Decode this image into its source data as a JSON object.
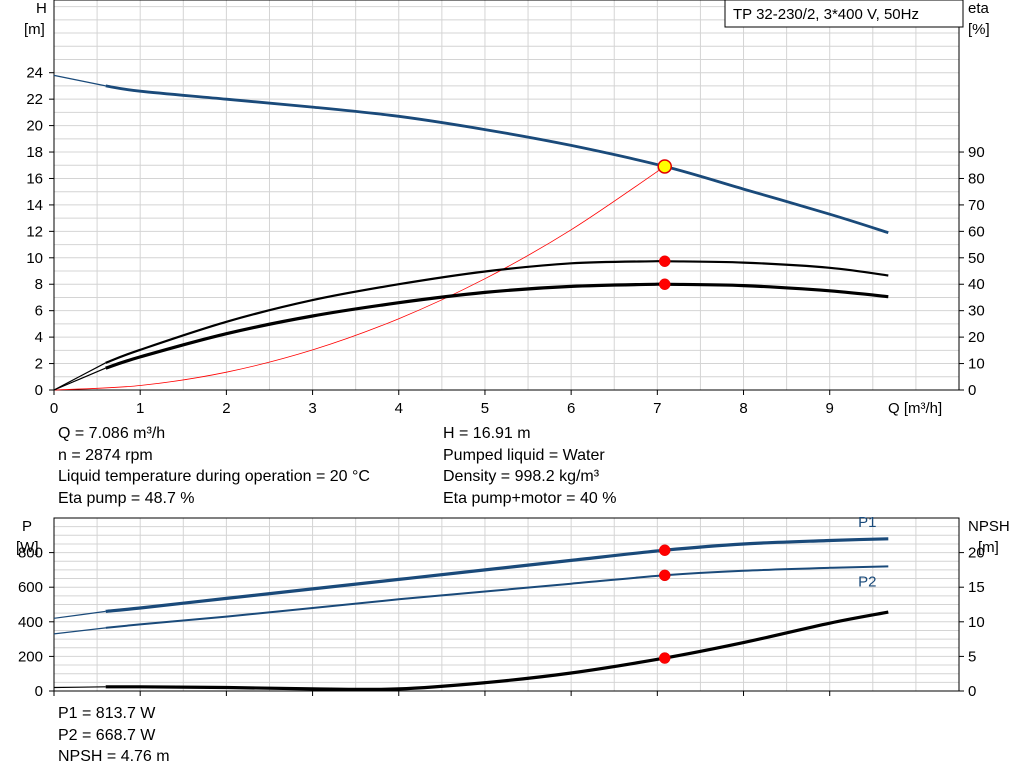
{
  "header": {
    "title": "TP 32-230/2, 3*400 V, 50Hz"
  },
  "chart_data": [
    {
      "type": "line",
      "name": "pump-curves",
      "x_axis": {
        "label": "Q [m³/h]",
        "ticks": [
          "0",
          "1",
          "2",
          "3",
          "4",
          "5",
          "6",
          "7",
          "8",
          "9"
        ],
        "range": [
          0,
          10.5
        ]
      },
      "y_left": {
        "label_line1": "H",
        "label_line2": "[m]",
        "ticks": [
          "0",
          "2",
          "4",
          "6",
          "8",
          "10",
          "12",
          "14",
          "16",
          "18",
          "20",
          "22",
          "24"
        ],
        "range": [
          0,
          29.5
        ]
      },
      "y_right": {
        "label_line1": "eta",
        "label_line2": "[%]",
        "ticks": [
          "0",
          "10",
          "20",
          "30",
          "40",
          "50",
          "60",
          "70",
          "80",
          "90"
        ],
        "range": [
          0,
          147.5
        ]
      },
      "grid": true,
      "series": [
        {
          "axis": "left",
          "color": "#1a4a7a",
          "x": [
            0,
            0.6,
            1,
            2,
            3,
            4,
            5,
            6,
            7.086,
            8,
            9,
            9.68
          ],
          "y": [
            23.8,
            23.0,
            22.6,
            22.0,
            21.4,
            20.7,
            19.7,
            18.5,
            16.91,
            15.2,
            13.3,
            11.9
          ]
        },
        {
          "axis": "left",
          "color": "#ff0000",
          "x": [
            0,
            1,
            2,
            3,
            4,
            5,
            6,
            7.086
          ],
          "y": [
            0,
            0.34,
            1.35,
            3.03,
            5.39,
            8.42,
            12.12,
            16.91
          ]
        },
        {
          "axis": "right",
          "color": "#000000",
          "x": [
            0,
            0.6,
            1,
            2,
            3,
            4,
            5,
            6,
            7,
            7.086,
            8,
            9,
            9.68
          ],
          "y": [
            0,
            10.3,
            15.2,
            25.8,
            34.0,
            40.0,
            44.8,
            47.9,
            48.7,
            48.7,
            48.2,
            46.2,
            43.3
          ]
        },
        {
          "axis": "right",
          "color": "#000000",
          "x": [
            0,
            0.6,
            1,
            2,
            3,
            4,
            5,
            6,
            7,
            7.086,
            8,
            9,
            9.68
          ],
          "y": [
            0,
            8.3,
            12.5,
            21.3,
            28.0,
            33.0,
            36.9,
            39.2,
            40.0,
            40.0,
            39.5,
            37.5,
            35.3
          ]
        }
      ],
      "operating_points": [
        {
          "axis": "left",
          "x": 7.086,
          "y": 16.91,
          "color": "#ffff00"
        },
        {
          "axis": "right",
          "x": 7.086,
          "y": 48.7,
          "color": "#ff0000"
        },
        {
          "axis": "right",
          "x": 7.086,
          "y": 40.0,
          "color": "#ff0000"
        }
      ]
    },
    {
      "type": "line",
      "name": "power-npsh-curves",
      "x_axis": {
        "range": [
          0,
          10.5
        ]
      },
      "y_left": {
        "label_line1": "P",
        "label_line2": "[W]",
        "ticks": [
          "0",
          "200",
          "400",
          "600",
          "800"
        ],
        "range": [
          0,
          1000
        ]
      },
      "y_right": {
        "label_line1": "NPSH",
        "label_line2": "[m]",
        "ticks": [
          "0",
          "5",
          "10",
          "15",
          "20"
        ],
        "range": [
          0,
          25
        ]
      },
      "grid": true,
      "series": [
        {
          "name": "P1",
          "axis": "left",
          "color": "#1a4a7a",
          "x": [
            0,
            0.6,
            1,
            2,
            3,
            4,
            5,
            6,
            7.086,
            8,
            9,
            9.68
          ],
          "y": [
            420,
            460,
            480,
            535,
            590,
            645,
            700,
            755,
            813.7,
            850,
            870,
            880
          ]
        },
        {
          "name": "P2",
          "axis": "left",
          "color": "#1a4a7a",
          "x": [
            0,
            0.6,
            1,
            2,
            3,
            4,
            5,
            6,
            7.086,
            8,
            9,
            9.68
          ],
          "y": [
            330,
            365,
            385,
            430,
            480,
            530,
            575,
            620,
            668.7,
            695,
            712,
            720
          ]
        },
        {
          "axis": "right",
          "color": "#000000",
          "x": [
            0,
            0.6,
            1,
            2,
            3,
            4,
            5,
            6,
            7.086,
            8,
            9,
            9.68
          ],
          "y": [
            0.5,
            0.6,
            0.6,
            0.5,
            0.3,
            0.3,
            1.2,
            2.6,
            4.76,
            7.0,
            9.8,
            11.4
          ]
        }
      ],
      "operating_points": [
        {
          "axis": "left",
          "x": 7.086,
          "y": 813.7,
          "color": "#ff0000"
        },
        {
          "axis": "left",
          "x": 7.086,
          "y": 668.7,
          "color": "#ff0000"
        },
        {
          "axis": "right",
          "x": 7.086,
          "y": 4.76,
          "color": "#ff0000"
        }
      ]
    }
  ],
  "operating_point_info": {
    "left": [
      "Q = 7.086 m³/h",
      "n = 2874 rpm",
      "Liquid temperature during operation = 20 °C",
      "Eta pump = 48.7 %"
    ],
    "right": [
      "H = 16.91 m",
      "Pumped liquid = Water",
      "Density = 998.2 kg/m³",
      "Eta pump+motor = 40 %"
    ]
  },
  "power_info": [
    "P1 = 813.7 W",
    "P2 = 668.7 W",
    "NPSH = 4.76 m"
  ]
}
